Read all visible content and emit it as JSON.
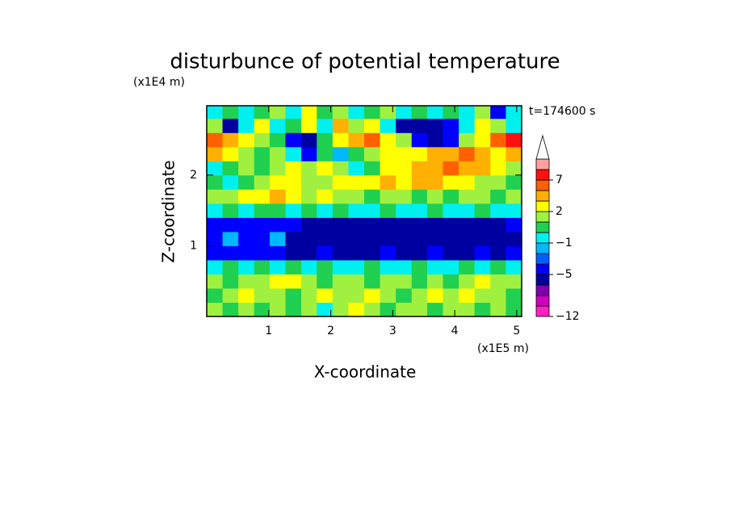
{
  "chart_data": {
    "type": "contour",
    "title": "disturbunce of potential temperature",
    "x_unit": "(x1E5 m)",
    "y_unit": "(x1E4 m)",
    "xlabel": "X-coordinate",
    "ylabel": "Z-coordinate",
    "annotation": "t=174600 s",
    "xlim": [
      0,
      5.08
    ],
    "ylim": [
      0,
      2.98
    ],
    "xticks": [
      1,
      2,
      3,
      4,
      5
    ],
    "yticks": [
      1,
      2
    ],
    "x": [
      0.13,
      0.38,
      0.64,
      0.89,
      1.14,
      1.4,
      1.65,
      1.9,
      2.16,
      2.41,
      2.67,
      2.92,
      3.18,
      3.43,
      3.68,
      3.94,
      4.19,
      4.45,
      4.7,
      4.95
    ],
    "y": [
      0.1,
      0.3,
      0.5,
      0.7,
      0.9,
      1.1,
      1.3,
      1.5,
      1.7,
      1.9,
      2.1,
      2.3,
      2.5,
      2.7,
      2.9
    ],
    "z": [
      [
        1,
        0.5,
        1,
        0.5,
        1,
        0.5,
        1,
        -0.5,
        1,
        2.5,
        1,
        0.5,
        1,
        1,
        0.5,
        1,
        1,
        0.5,
        1,
        0.5
      ],
      [
        0.5,
        1,
        2.5,
        1,
        1,
        0.5,
        1,
        2.5,
        1,
        1,
        2.5,
        1,
        0.5,
        1,
        2.5,
        1,
        2.5,
        1,
        1,
        0.5
      ],
      [
        1,
        0.5,
        1,
        1,
        2.5,
        2.5,
        1,
        0.5,
        1,
        1,
        0.5,
        1,
        1,
        0.5,
        1,
        0.5,
        1,
        2.5,
        1,
        1
      ],
      [
        -0.5,
        0.5,
        -0.5,
        0.5,
        -0.5,
        0.5,
        -0.5,
        0.5,
        -0.5,
        -0.5,
        0.5,
        -0.5,
        -0.5,
        0.5,
        -0.5,
        -0.5,
        0.5,
        -0.5,
        0.5,
        -0.5
      ],
      [
        -3.5,
        -3.5,
        -4.5,
        -4.5,
        -3.5,
        -5.5,
        -5.5,
        -4.5,
        -5.5,
        -5.5,
        -5.5,
        -4.5,
        -5.5,
        -5.5,
        -4.5,
        -5.5,
        -5.5,
        -4.5,
        -5.5,
        -4.5
      ],
      [
        -3.5,
        -1.5,
        -3.5,
        -3.5,
        -1.5,
        -5.5,
        -5.5,
        -5.5,
        -5.5,
        -5.5,
        -5.5,
        -5.5,
        -5.5,
        -5.5,
        -5.5,
        -5.5,
        -5.5,
        -5.5,
        -5.5,
        -5.5
      ],
      [
        -3.5,
        -3.5,
        -3.5,
        -3.5,
        -3.5,
        -3.5,
        -5.5,
        -5.5,
        -5.5,
        -5.5,
        -5.5,
        -5.5,
        -5.5,
        -5.5,
        -5.5,
        -5.5,
        -5.5,
        -5.5,
        -5.5,
        -3.5
      ],
      [
        -0.5,
        0.5,
        -0.5,
        0.5,
        0.5,
        -0.5,
        0.5,
        -0.5,
        0.5,
        -0.5,
        -0.5,
        0.5,
        -0.5,
        -0.5,
        0.5,
        -0.5,
        -0.5,
        0.5,
        -0.5,
        -0.5
      ],
      [
        1,
        1,
        2.5,
        2.5,
        4,
        2.5,
        1,
        2.5,
        1,
        1,
        0.5,
        1,
        1,
        0.5,
        1,
        0.5,
        1,
        1,
        0.5,
        1
      ],
      [
        0.5,
        -0.5,
        0.5,
        1,
        2.5,
        2.5,
        1,
        1,
        2.5,
        2.5,
        2.5,
        4,
        2.5,
        4,
        4,
        2.5,
        2.5,
        1,
        1,
        0.5
      ],
      [
        -0.5,
        0.5,
        1,
        0.5,
        1,
        2.5,
        1,
        2.5,
        1,
        -0.5,
        0.5,
        2.5,
        2.5,
        4,
        4,
        6,
        4,
        4,
        2.5,
        1
      ],
      [
        4,
        2.5,
        1,
        0.5,
        1,
        -0.5,
        -3.5,
        0.5,
        -1.5,
        0.5,
        1,
        2.5,
        2.5,
        2.5,
        4,
        4,
        6,
        4,
        2.5,
        4
      ],
      [
        6,
        4,
        2.5,
        1,
        0.5,
        -3.5,
        -5.5,
        0.5,
        2.5,
        4,
        6,
        2.5,
        1,
        -3.5,
        -5.5,
        -3.5,
        1,
        2.5,
        6,
        8
      ],
      [
        1,
        -5.5,
        -0.5,
        2.5,
        -0.5,
        0.5,
        2.5,
        -0.5,
        4,
        1,
        2.5,
        -0.5,
        -5.5,
        -5.5,
        -5.5,
        -3.5,
        -0.5,
        2.5,
        1,
        -0.5
      ],
      [
        -0.5,
        0.5,
        -0.5,
        0.5,
        1,
        -0.5,
        2.5,
        0.5,
        1,
        -0.5,
        0.5,
        1,
        -0.5,
        0.5,
        -0.5,
        0.5,
        -0.5,
        1,
        -3.5,
        -0.5
      ]
    ],
    "levels": [
      -12,
      -10,
      -8,
      -6,
      -5,
      -3,
      -2,
      -1,
      0,
      1,
      2,
      3,
      5,
      7,
      9,
      11
    ],
    "colors": [
      "#ff20c0",
      "#d000c0",
      "#8000b0",
      "#0000a0",
      "#0000ff",
      "#0060ff",
      "#00b8ff",
      "#00f0f0",
      "#20d050",
      "#a0f040",
      "#ffff00",
      "#ffb000",
      "#ff6000",
      "#ff1010",
      "#ffa0a0"
    ],
    "extend_color": "#ffffff",
    "colorbar_ticks": [
      {
        "value": -12,
        "label": "−12"
      },
      {
        "value": -5,
        "label": "−5"
      },
      {
        "value": -1,
        "label": "−1"
      },
      {
        "value": 2,
        "label": "2"
      },
      {
        "value": 7,
        "label": "7"
      }
    ]
  }
}
